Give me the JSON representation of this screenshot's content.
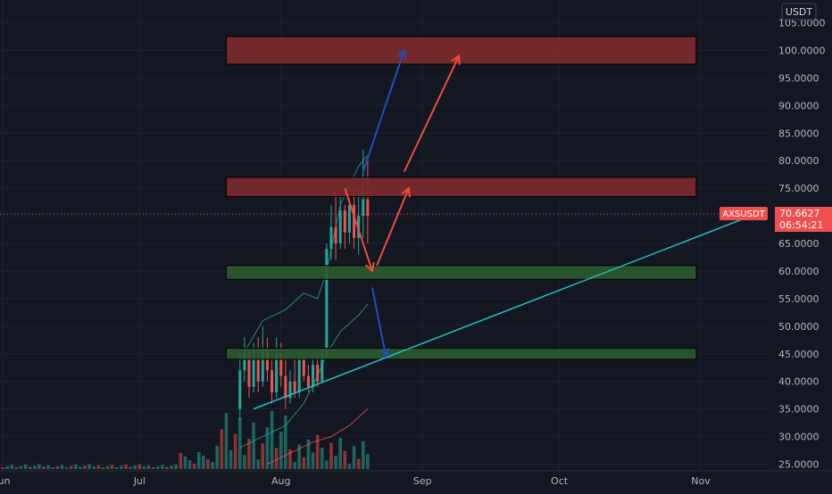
{
  "chart_data": {
    "type": "candlestick",
    "symbol": "AXSUSDT",
    "currency": "USDT",
    "current_price": "70.6627",
    "countdown": "06:54:21",
    "y_ticks": [
      "105.0000",
      "100.0000",
      "95.0000",
      "90.0000",
      "85.0000",
      "80.0000",
      "75.0000",
      "70.0000",
      "65.0000",
      "60.0000",
      "55.0000",
      "50.0000",
      "45.0000",
      "40.0000",
      "35.0000",
      "30.0000",
      "25.0000"
    ],
    "y_tick_values": [
      105,
      100,
      95,
      90,
      85,
      80,
      75,
      70,
      65,
      60,
      55,
      50,
      45,
      40,
      35,
      30,
      25
    ],
    "ylim": [
      24,
      108
    ],
    "x_labels": [
      "Jun",
      "Jul",
      "Aug",
      "Sep",
      "Oct",
      "Nov"
    ],
    "x_label_dates": [
      "2021-06-01",
      "2021-07-01",
      "2021-08-01",
      "2021-09-01",
      "2021-10-01",
      "2021-11-01"
    ],
    "zones": [
      {
        "kind": "resistance",
        "low": 97.5,
        "high": 102.5,
        "from": "2021-07-20",
        "to": "2021-10-31"
      },
      {
        "kind": "resistance",
        "low": 73.5,
        "high": 77,
        "from": "2021-07-20",
        "to": "2021-10-31"
      },
      {
        "kind": "support",
        "low": 58.5,
        "high": 61,
        "from": "2021-07-20",
        "to": "2021-10-31"
      },
      {
        "kind": "support",
        "low": 44,
        "high": 46,
        "from": "2021-07-20",
        "to": "2021-10-31"
      }
    ],
    "trendline": {
      "from": {
        "date": "2021-07-26",
        "price": 35
      },
      "to": {
        "date": "2021-11-12",
        "price": 70
      }
    },
    "arrows": [
      {
        "color": "blue",
        "from": {
          "date": "2021-08-19",
          "price": 78
        },
        "to": {
          "date": "2021-08-28",
          "price": 100
        }
      },
      {
        "color": "red",
        "from": {
          "date": "2021-08-28",
          "price": 78
        },
        "to": {
          "date": "2021-09-09",
          "price": 99
        }
      },
      {
        "color": "red",
        "from": {
          "date": "2021-08-15",
          "price": 75
        },
        "to": {
          "date": "2021-08-21",
          "price": 60
        }
      },
      {
        "color": "red",
        "from": {
          "date": "2021-08-22",
          "price": 61
        },
        "to": {
          "date": "2021-08-29",
          "price": 75
        }
      },
      {
        "color": "blue",
        "from": {
          "date": "2021-08-21",
          "price": 57
        },
        "to": {
          "date": "2021-08-24",
          "price": 44.5
        }
      }
    ],
    "colors": {
      "background": "#131722",
      "up": "#26a69a",
      "down": "#ef5350",
      "volume_up": "#1c655e",
      "volume_down": "#8c3433",
      "resistance_fill": "#7e2a2c",
      "support_fill": "#2b5a2e",
      "trendline": "#1fc0c5",
      "arrow_red": "#ef4a3c",
      "arrow_blue": "#1f4fb8",
      "price_tag": "#f0504d",
      "text": "#b2b5be"
    }
  }
}
